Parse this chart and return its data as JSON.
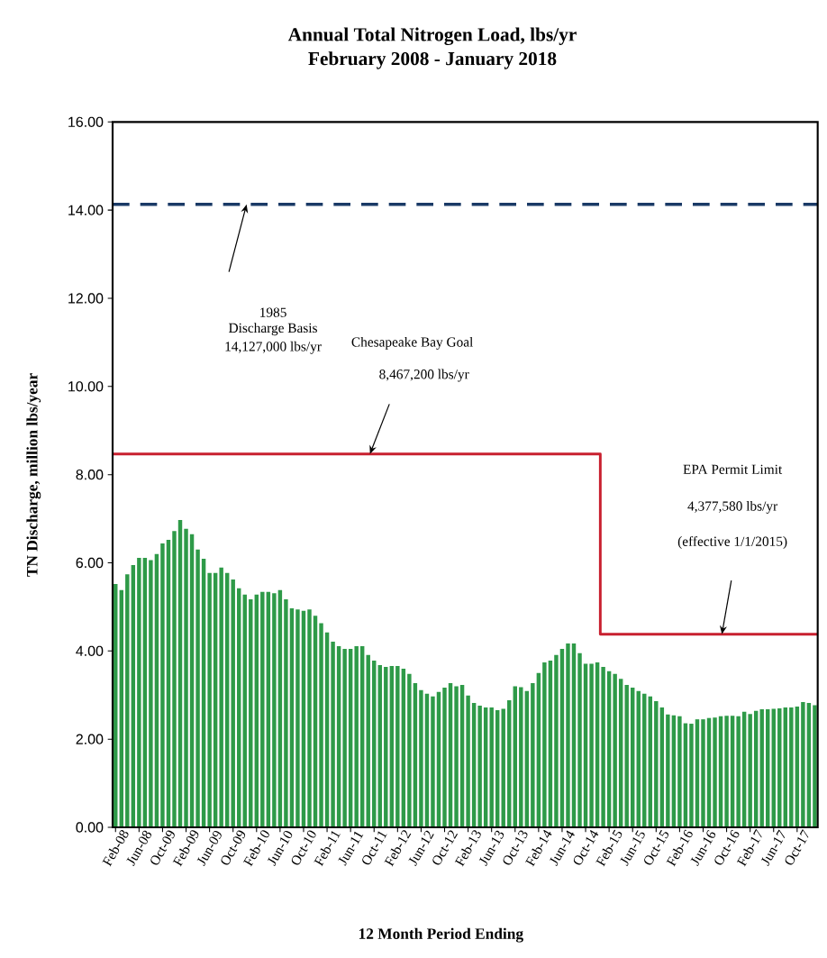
{
  "chart_data": {
    "type": "bar",
    "title": "Annual Total Nitrogen Load, lbs/yr",
    "subtitle": "February 2008 - January 2018",
    "xlabel": "12 Month Period Ending",
    "ylabel": "TN Discharge, million lbs/year",
    "categories": [
      "Feb-08",
      null,
      null,
      null,
      "Jun-08",
      null,
      null,
      null,
      "Oct-09",
      null,
      null,
      null,
      "Feb-09",
      null,
      null,
      null,
      "Jun-09",
      null,
      null,
      null,
      "Oct-09",
      null,
      null,
      null,
      "Feb-10",
      null,
      null,
      null,
      "Jun-10",
      null,
      null,
      null,
      "Oct-10",
      null,
      null,
      null,
      "Feb-11",
      null,
      null,
      null,
      "Jun-11",
      null,
      null,
      null,
      "Oct-11",
      null,
      null,
      null,
      "Feb-12",
      null,
      null,
      null,
      "Jun-12",
      null,
      null,
      null,
      "Oct-12",
      null,
      null,
      null,
      "Feb-13",
      null,
      null,
      null,
      "Jun-13",
      null,
      null,
      null,
      "Oct-13",
      null,
      null,
      null,
      "Feb-14",
      null,
      null,
      null,
      "Jun-14",
      null,
      null,
      null,
      "Oct-14",
      null,
      null,
      null,
      "Feb-15",
      null,
      null,
      null,
      "Jun-15",
      null,
      null,
      null,
      "Oct-15",
      null,
      null,
      null,
      "Feb-16",
      null,
      null,
      null,
      "Jun-16",
      null,
      null,
      null,
      "Oct-16",
      null,
      null,
      null,
      "Feb-17",
      null,
      null,
      null,
      "Jun-17",
      null,
      null,
      null,
      "Oct-17",
      null,
      null,
      null
    ],
    "series": [
      {
        "color": "#2e9a48",
        "values": [
          5.52,
          5.38,
          5.74,
          5.95,
          6.11,
          6.11,
          6.06,
          6.2,
          6.44,
          6.52,
          6.72,
          6.97,
          6.77,
          6.65,
          6.3,
          6.09,
          5.77,
          5.77,
          5.89,
          5.77,
          5.62,
          5.42,
          5.28,
          5.17,
          5.28,
          5.34,
          5.34,
          5.31,
          5.38,
          5.17,
          4.97,
          4.94,
          4.91,
          4.94,
          4.8,
          4.63,
          4.42,
          4.21,
          4.11,
          4.05,
          4.05,
          4.11,
          4.11,
          3.91,
          3.78,
          3.68,
          3.64,
          3.66,
          3.66,
          3.6,
          3.48,
          3.27,
          3.11,
          3.03,
          2.97,
          3.07,
          3.17,
          3.27,
          3.2,
          3.23,
          2.99,
          2.82,
          2.76,
          2.72,
          2.72,
          2.66,
          2.69,
          2.88,
          3.2,
          3.18,
          3.09,
          3.27,
          3.5,
          3.74,
          3.78,
          3.91,
          4.05,
          4.17,
          4.17,
          3.95,
          3.71,
          3.71,
          3.74,
          3.64,
          3.54,
          3.48,
          3.37,
          3.23,
          3.17,
          3.09,
          3.03,
          2.97,
          2.86,
          2.72,
          2.56,
          2.54,
          2.52,
          2.36,
          2.35,
          2.45,
          2.45,
          2.48,
          2.49,
          2.52,
          2.53,
          2.53,
          2.52,
          2.62,
          2.57,
          2.64,
          2.68,
          2.68,
          2.69,
          2.7,
          2.72,
          2.72,
          2.74,
          2.84,
          2.82,
          2.77
        ]
      },
      {
        "type": "step",
        "color": "#c8202f",
        "values": [
          8.47,
          8.47,
          8.47,
          8.47,
          8.47,
          8.47,
          8.47,
          8.47,
          8.47,
          8.47,
          8.47,
          8.47,
          8.47,
          8.47,
          8.47,
          8.47,
          8.47,
          8.47,
          8.47,
          8.47,
          8.47,
          8.47,
          8.47,
          8.47,
          8.47,
          8.47,
          8.47,
          8.47,
          8.47,
          8.47,
          8.47,
          8.47,
          8.47,
          8.47,
          8.47,
          8.47,
          8.47,
          8.47,
          8.47,
          8.47,
          8.47,
          8.47,
          8.47,
          8.47,
          8.47,
          8.47,
          8.47,
          8.47,
          8.47,
          8.47,
          8.47,
          8.47,
          8.47,
          8.47,
          8.47,
          8.47,
          8.47,
          8.47,
          8.47,
          8.47,
          8.47,
          8.47,
          8.47,
          8.47,
          8.47,
          8.47,
          8.47,
          8.47,
          8.47,
          8.47,
          8.47,
          8.47,
          8.47,
          8.47,
          8.47,
          8.47,
          8.47,
          8.47,
          8.47,
          8.47,
          8.47,
          8.47,
          8.47,
          4.38,
          4.38,
          4.38,
          4.38,
          4.38,
          4.38,
          4.38,
          4.38,
          4.38,
          4.38,
          4.38,
          4.38,
          4.38,
          4.38,
          4.38,
          4.38,
          4.38,
          4.38,
          4.38,
          4.38,
          4.38,
          4.38,
          4.38,
          4.38,
          4.38,
          4.38,
          4.38,
          4.38,
          4.38,
          4.38,
          4.38,
          4.38,
          4.38,
          4.38,
          4.38,
          4.38,
          4.38
        ]
      }
    ],
    "ylim": [
      0,
      16
    ],
    "yticks": [
      {
        "value": 0,
        "label": "0.00"
      },
      {
        "value": 2,
        "label": "2.00"
      },
      {
        "value": 4,
        "label": "4.00"
      },
      {
        "value": 6,
        "label": "6.00"
      },
      {
        "value": 8,
        "label": "8.00"
      },
      {
        "value": 10,
        "label": "10.00"
      },
      {
        "value": 12,
        "label": "12.00"
      },
      {
        "value": 14,
        "label": "14.00"
      },
      {
        "value": 16,
        "label": "16.00"
      }
    ],
    "ref_lines": [
      {
        "axis": "y",
        "value": 14.13,
        "color": "#1a3a66",
        "line_style": "dashed"
      }
    ],
    "annotations": [
      "1985",
      "Discharge Basis",
      "14,127,000 lbs/yr",
      "Chesapeake Bay Goal",
      "8,467,200 lbs/yr",
      "EPA Permit Limit",
      "4,377,580 lbs/yr",
      "(effective 1/1/2015)"
    ]
  }
}
